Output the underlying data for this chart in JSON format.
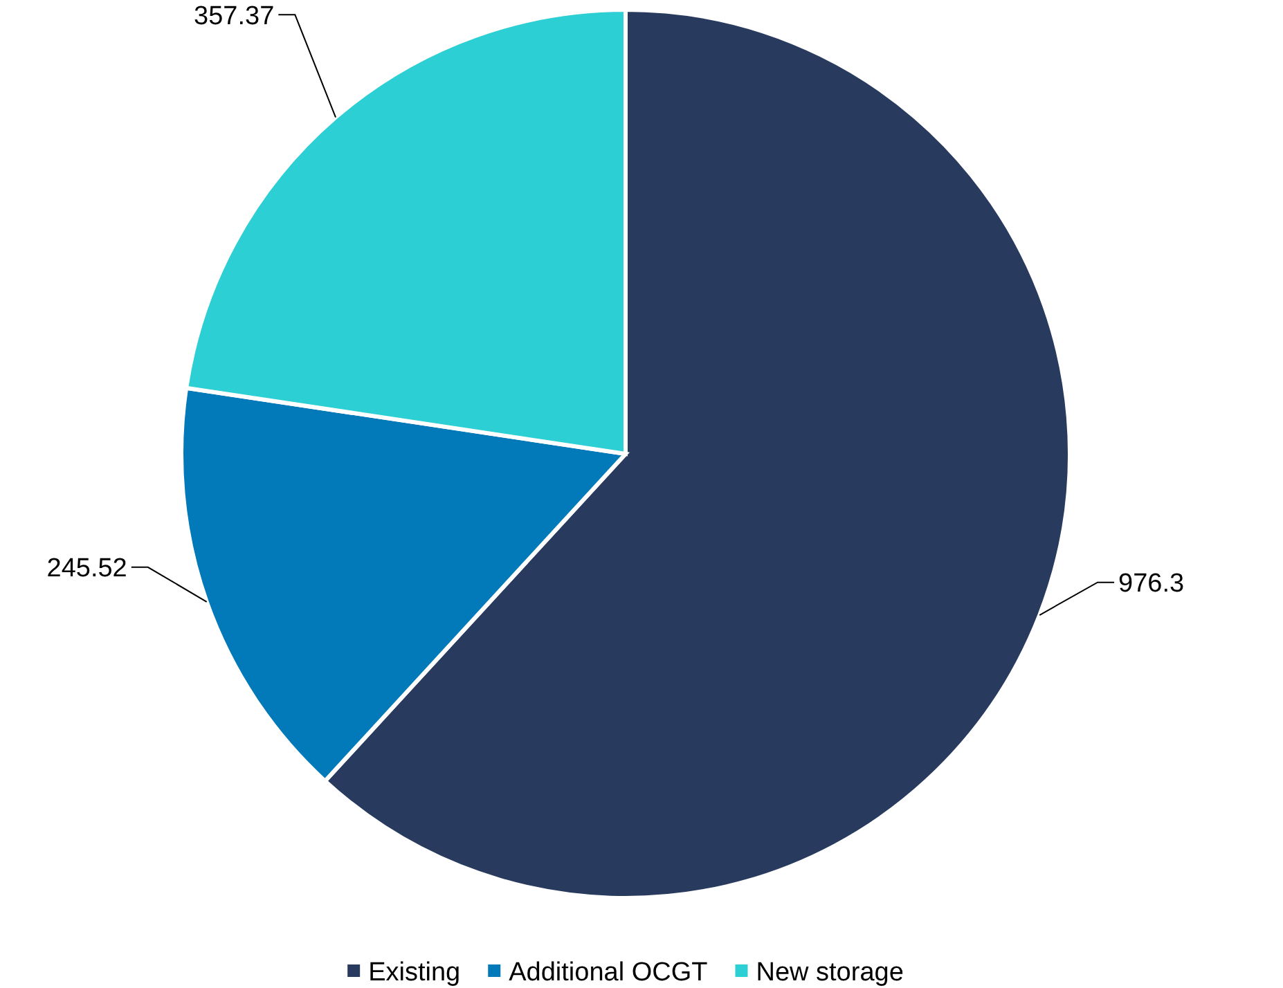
{
  "chart_data": {
    "type": "pie",
    "categories": [
      "Existing",
      "Additional OCGT",
      "New storage"
    ],
    "values": [
      976.3,
      245.52,
      357.37
    ],
    "colors": [
      "#283a5e",
      "#0279b8",
      "#2ccfd4"
    ],
    "data_labels": true,
    "legend": "bottom"
  }
}
